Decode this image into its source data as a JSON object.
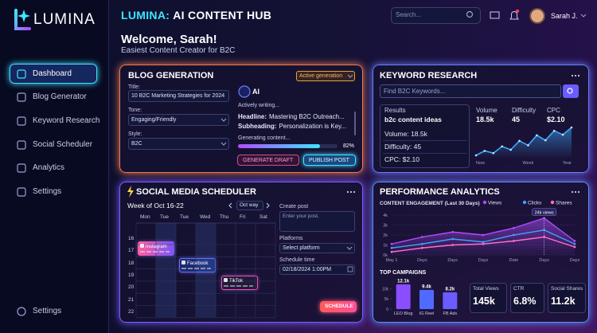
{
  "brand": "LUMINA",
  "header": {
    "title_brand": "LUMINA:",
    "title_rest": "AI CONTENT HUB",
    "search": "Search...",
    "user": "Sarah J."
  },
  "welcome": {
    "title": "Welcome, Sarah!",
    "subtitle": "Easiest Content Creator for B2C"
  },
  "nav": {
    "items": [
      "Dashboard",
      "Blog Generator",
      "Keyword Research",
      "Social Scheduler",
      "Analytics",
      "Settings"
    ],
    "footer": "Settings"
  },
  "blog": {
    "title": "BLOG GENERATION",
    "badge": "Active generation",
    "title_label": "Title:",
    "title_value": "10 B2C Marketing Strategies for 2024",
    "tone_label": "Tone:",
    "tone_value": "Engaging/Friendly",
    "style_label": "Style:",
    "style_value": "B2C",
    "ai_label": "AI",
    "status": "Actively writing...",
    "headline_label": "Headline:",
    "headline": "Mastering B2C Outreach...",
    "subheading_label": "Subheading:",
    "subheading": "Personalization is Key...",
    "progress": {
      "label": "Generating content...",
      "value": 82,
      "value_label": "82%"
    },
    "buttons": [
      "GENERATE DRAFT",
      "PUBLISH POST"
    ]
  },
  "keyword": {
    "title": "KEYWORD RESEARCH",
    "search": "Find B2C Keywords...",
    "results_label": "Results",
    "query": "b2c content ideas",
    "rows": [
      "Volume: 18.5k",
      "Difficulty: 45",
      "CPC: $2.10"
    ],
    "metrics": [
      {
        "label": "Volume",
        "value": "18.5k"
      },
      {
        "label": "Difficulty",
        "value": "45"
      },
      {
        "label": "CPC",
        "value": "$2.10"
      }
    ],
    "trend": {
      "type": "area",
      "color": "#3fa8ff",
      "categories": [
        "Now",
        null,
        null,
        null,
        null,
        null,
        "Week",
        null,
        null,
        null,
        null,
        "Year"
      ],
      "values": [
        20,
        28,
        24,
        36,
        30,
        46,
        38,
        56,
        47,
        64,
        57,
        70
      ]
    }
  },
  "social": {
    "title": "SOCIAL MEDIA SCHEDULER",
    "week": "Week of Oct 16-22",
    "view": "Oct way",
    "days": [
      "Mon",
      "Tue",
      "Tue",
      "Wed",
      "Thu",
      "Fri",
      "Sat"
    ],
    "hours": [
      16,
      17,
      18,
      19,
      20,
      21,
      22
    ],
    "events": [
      "Instagram",
      "Facebook",
      "TikTok"
    ],
    "create_label": "Create post",
    "create_placeholder": "Enter your post.",
    "platforms_label": "Platforms",
    "platforms_value": "Select platform",
    "time_label": "Schedule time",
    "time_value": "02/18/2024 1:00PM",
    "button": "SCHEDULE"
  },
  "performance": {
    "title": "PERFORMANCE ANALYTICS",
    "engagement": {
      "type": "line",
      "title": "CONTENT ENGAGEMENT (Last 30 Days)",
      "categories": [
        "May 1",
        "Days",
        "Days",
        "Days",
        "Date",
        "Days",
        "Days"
      ],
      "series": [
        {
          "name": "Views",
          "color": "#b04cff",
          "values": [
            1100,
            1800,
            2300,
            2000,
            2700,
            3700,
            1400
          ]
        },
        {
          "name": "Clicks",
          "color": "#3fa0ff",
          "values": [
            700,
            1100,
            1600,
            1300,
            2000,
            2500,
            1100
          ]
        },
        {
          "name": "Shares",
          "color": "#ff6fc8",
          "values": [
            300,
            700,
            1000,
            1100,
            1400,
            1800,
            800
          ]
        }
      ],
      "ylim": [
        0,
        4000
      ],
      "yticks": [
        {
          "value": 0,
          "label": "0k"
        },
        {
          "value": 1000,
          "label": "1k"
        },
        {
          "value": 2000,
          "label": "2k"
        },
        {
          "value": 3000,
          "label": "3k"
        },
        {
          "value": 4000,
          "label": "4k"
        }
      ],
      "grid": true,
      "legend": "top-right",
      "annotation": "24k views"
    },
    "campaigns": {
      "type": "bar",
      "title": "TOP CAMPAIGNS",
      "categories": [
        "LEO Blog",
        "IG Reel",
        "FB Ads"
      ],
      "values": [
        12100,
        9400,
        8200
      ],
      "value_labels": [
        "12.1k",
        "9.4k",
        "8.2k"
      ],
      "colors": [
        "#8a4dff",
        "#4f6bff",
        "#6a5cff"
      ],
      "ylim": [
        0,
        14000
      ],
      "yticks": [
        0,
        {
          "value": 5000,
          "label": "5k"
        },
        {
          "value": 10000,
          "label": "10k"
        }
      ]
    },
    "stats": [
      {
        "label": "Total Views",
        "value": "145k"
      },
      {
        "label": "CTR",
        "value": "6.8%"
      },
      {
        "label": "Social Shares",
        "value": "11.2k"
      }
    ]
  }
}
